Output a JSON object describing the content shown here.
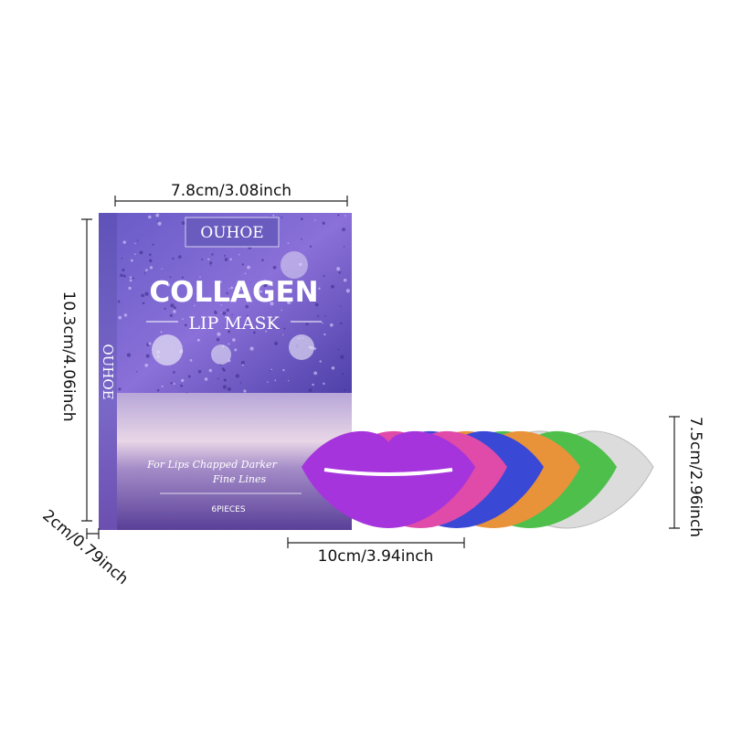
{
  "dimensions": {
    "box_width": "7.8cm/3.08inch",
    "box_height": "10.3cm/4.06inch",
    "box_depth": "2cm/0.79inch",
    "mask_width": "10cm/3.94inch",
    "mask_height": "7.5cm/2.96inch"
  },
  "box": {
    "brand": "OUHOE",
    "side_brand": "OUHOE",
    "title": "COLLAGEN",
    "subtitle": "LIP MASK",
    "tagline_1": "For Lips Chapped Darker",
    "tagline_2": "Fine Lines",
    "count": "6PIECES"
  }
}
